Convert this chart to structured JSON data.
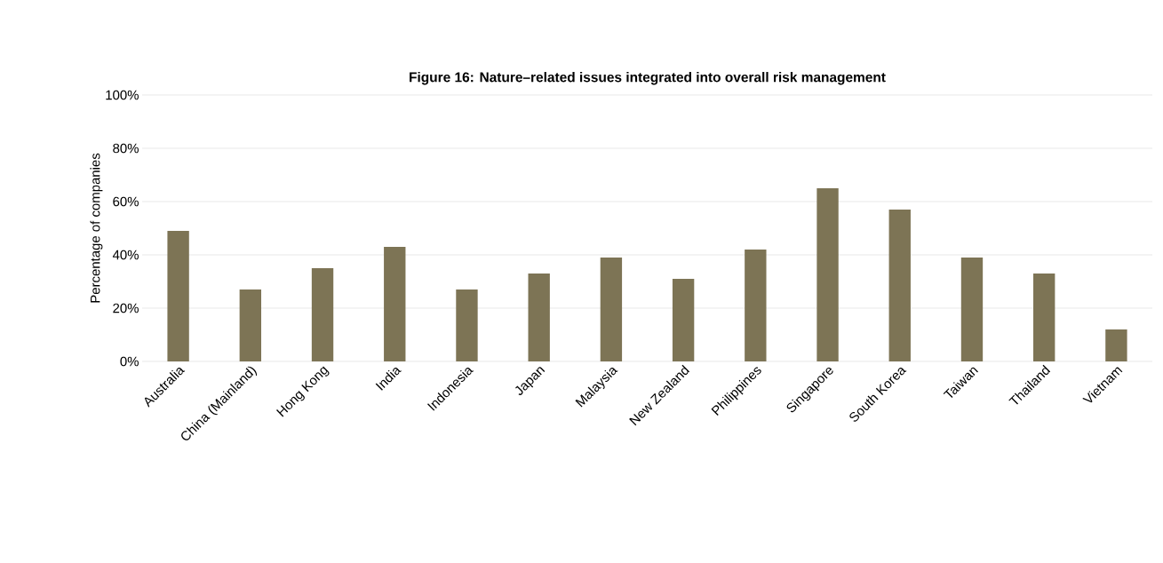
{
  "chart_data": {
    "type": "bar",
    "title": "Figure 16: Nature–related issues integrated into overall risk management",
    "ylabel": "Percentage of companies",
    "categories": [
      "Australia",
      "China (Mainland)",
      "Hong Kong",
      "India",
      "Indonesia",
      "Japan",
      "Malaysia",
      "New Zealand",
      "Philippines",
      "Singapore",
      "South Korea",
      "Taiwan",
      "Thailand",
      "Vietnam"
    ],
    "values": [
      49,
      27,
      35,
      43,
      27,
      33,
      39,
      31,
      42,
      65,
      57,
      39,
      33,
      12
    ],
    "color": "#7d7455",
    "ylim": [
      0,
      100
    ],
    "yticks": [
      {
        "value": 0,
        "label": "0%"
      },
      {
        "value": 20,
        "label": "20%"
      },
      {
        "value": 40,
        "label": "40%"
      },
      {
        "value": 60,
        "label": "60%"
      },
      {
        "value": 80,
        "label": "80%"
      },
      {
        "value": 100,
        "label": "100%"
      }
    ],
    "grid": "y"
  }
}
